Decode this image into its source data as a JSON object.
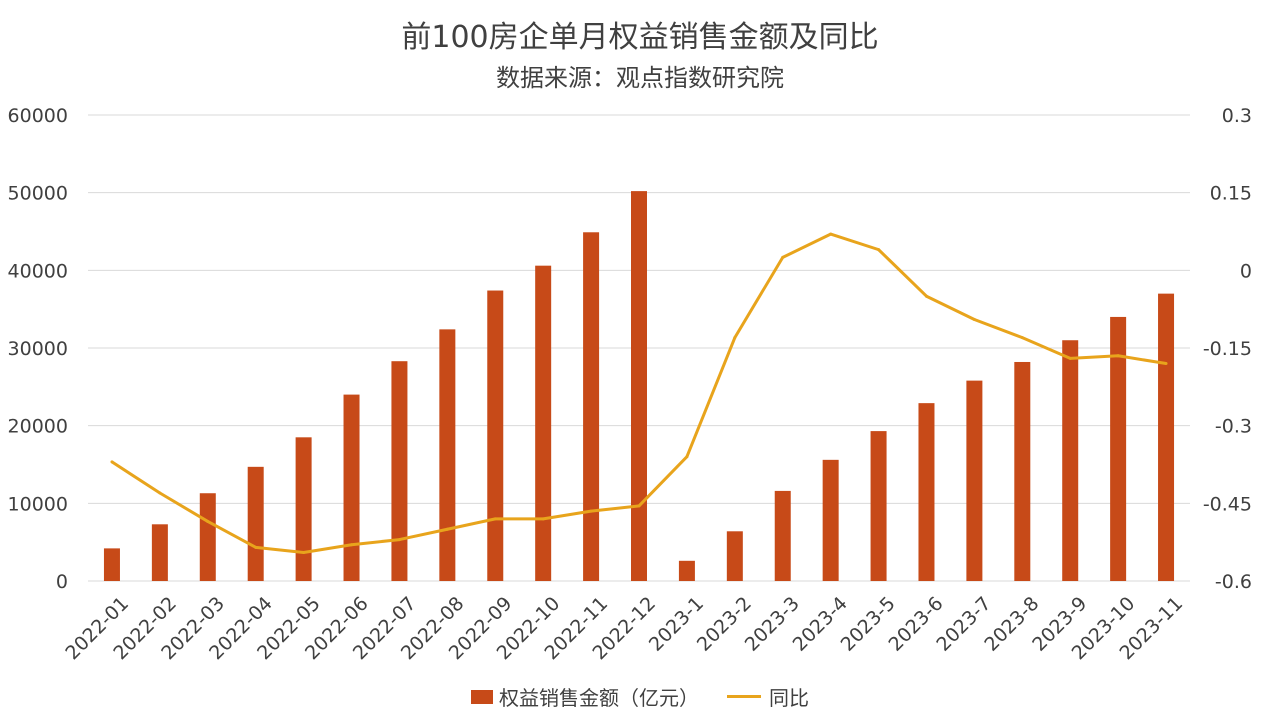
{
  "title": "前100房企单月权益销售金额及同比",
  "subtitle": "数据来源：观点指数研究院",
  "colors": {
    "bar": "#C74A18",
    "line": "#E8A41C",
    "grid": "#D9D9D9",
    "text": "#404040"
  },
  "chart_data": {
    "type": "bar",
    "categories": [
      "2022-01",
      "2022-02",
      "2022-03",
      "2022-04",
      "2022-05",
      "2022-06",
      "2022-07",
      "2022-08",
      "2022-09",
      "2022-10",
      "2022-11",
      "2022-12",
      "2023-1",
      "2023-2",
      "2023-3",
      "2023-4",
      "2023-5",
      "2023-6",
      "2023-7",
      "2023-8",
      "2023-9",
      "2023-10",
      "2023-11"
    ],
    "series": [
      {
        "name": "权益销售金额（亿元）",
        "type": "bar",
        "axis": "left",
        "values": [
          4200,
          7300,
          11300,
          14700,
          18500,
          24000,
          28300,
          32400,
          37400,
          40600,
          44900,
          50200,
          2600,
          6400,
          11600,
          15600,
          19300,
          22900,
          25800,
          28200,
          31000,
          34000,
          37000
        ]
      },
      {
        "name": "同比",
        "type": "line",
        "axis": "right",
        "values": [
          -0.37,
          -0.43,
          -0.485,
          -0.535,
          -0.545,
          -0.53,
          -0.52,
          -0.5,
          -0.48,
          -0.48,
          -0.465,
          -0.455,
          -0.36,
          -0.13,
          0.025,
          0.07,
          0.04,
          -0.05,
          -0.095,
          -0.13,
          -0.17,
          -0.165,
          -0.18
        ]
      }
    ],
    "y_left": {
      "ticks": [
        "60000",
        "50000",
        "40000",
        "30000",
        "20000",
        "10000",
        "0"
      ],
      "range": [
        0,
        60000
      ]
    },
    "y_right": {
      "ticks": [
        "0.3",
        "0.15",
        "0",
        "-0.15",
        "-0.3",
        "-0.45",
        "-0.6"
      ],
      "range": [
        -0.6,
        0.3
      ]
    },
    "grid": true,
    "legend_position": "bottom"
  }
}
